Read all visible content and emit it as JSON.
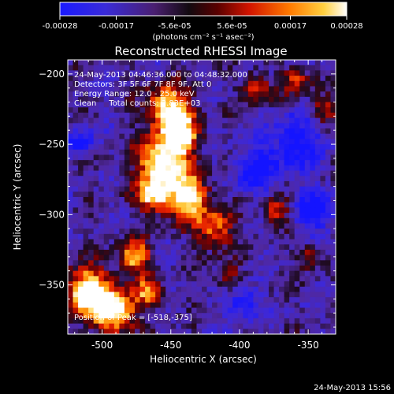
{
  "colorbar": {
    "ticks": [
      "-0.00028",
      "-0.00017",
      "-5.6e-05",
      "5.6e-05",
      "0.00017",
      "0.00028"
    ],
    "tick_values": [
      -0.00028,
      -0.00017,
      -5.6e-05,
      5.6e-05,
      0.00017,
      0.00028
    ],
    "range": [
      -0.00028,
      0.00028
    ],
    "unit_label": "(photons cm⁻² s⁻¹ asec⁻²)"
  },
  "chart_data": {
    "type": "heatmap",
    "title": "Reconstructed RHESSI Image",
    "xlabel": "Heliocentric X (arcsec)",
    "ylabel": "Heliocentric Y (arcsec)",
    "xlim": [
      -525,
      -330
    ],
    "ylim": [
      -385,
      -190
    ],
    "xticks": [
      -500,
      -450,
      -400,
      -350
    ],
    "yticks": [
      -200,
      -250,
      -300,
      -350
    ],
    "xtick_labels": [
      "-500",
      "-450",
      "-400",
      "-350"
    ],
    "ytick_labels": [
      "−200",
      "−250",
      "−300",
      "−350"
    ],
    "colorscale": [
      "#0000ff",
      "#4b2bb0",
      "#1a1a1a",
      "#8a0000",
      "#ff2a00",
      "#ff9a00",
      "#ffd24a",
      "#ffffff"
    ],
    "annotations": [
      "24-May-2013 04:46:36.000 to 04:48:32.000",
      "Detectors: 3F 5F 6F 7F 8F 9F, Att 0",
      "Energy Range: 12.0 - 25.0 keV",
      "Clean     Total counts: 2.83E+03"
    ],
    "peak_label": "Position of Peak = [-518,-375]",
    "peak": [
      -518,
      -375
    ]
  },
  "footer": {
    "timestamp": "24-May-2013 15:56"
  }
}
